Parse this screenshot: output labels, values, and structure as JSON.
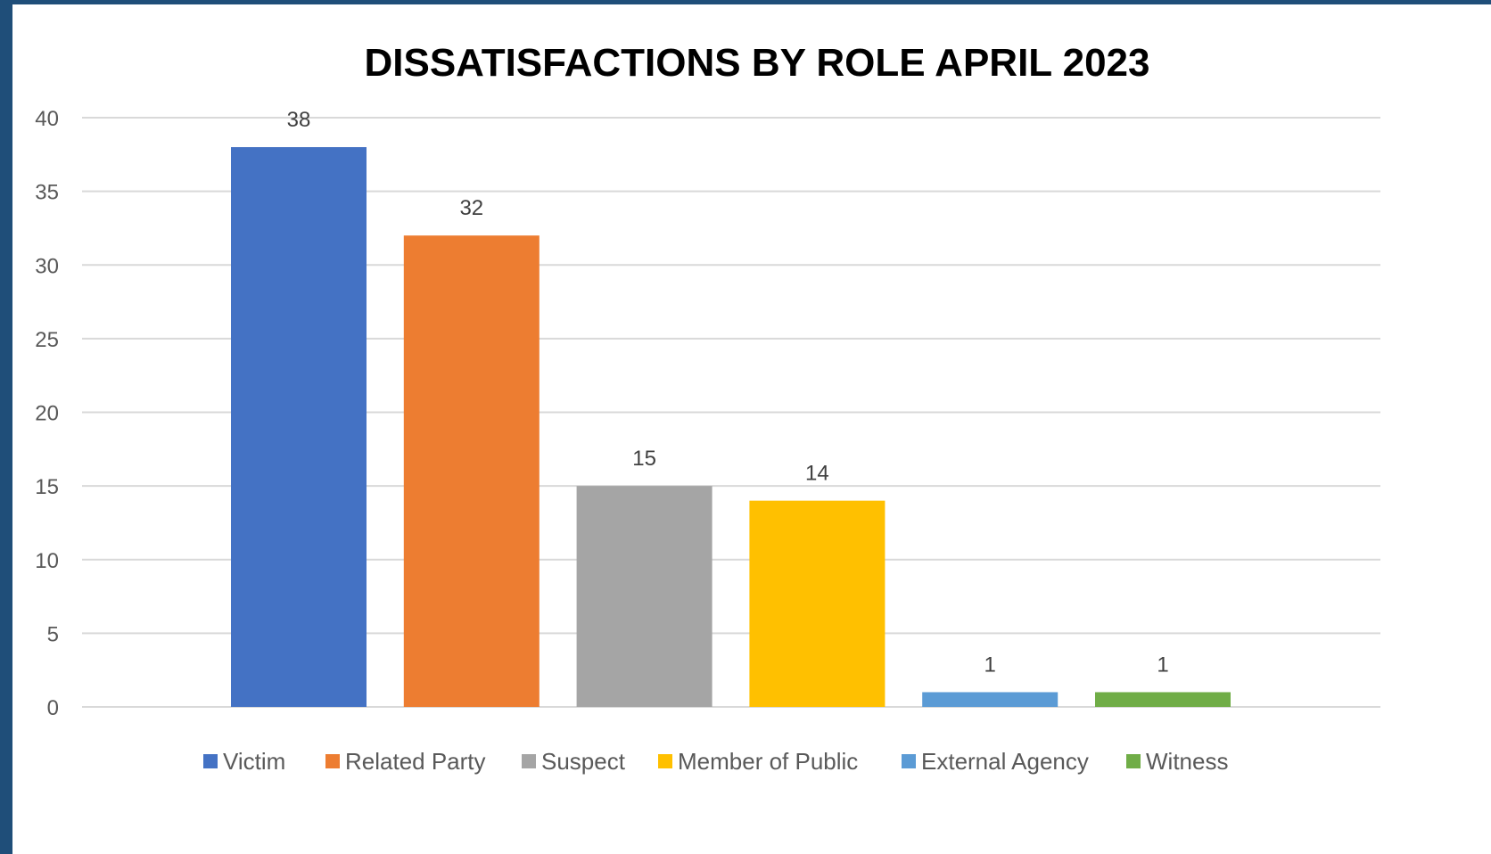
{
  "chart_data": {
    "type": "bar",
    "title": "DISSATISFACTIONS BY ROLE APRIL 2023",
    "xlabel": "",
    "ylabel": "",
    "ylim": [
      0,
      40
    ],
    "yticks": [
      0,
      5,
      10,
      15,
      20,
      25,
      30,
      35,
      40
    ],
    "grid": true,
    "legend_position": "bottom",
    "categories": [
      "Victim",
      "Related Party",
      "Suspect",
      "Member of Public",
      "External Agency",
      "Witness"
    ],
    "values": [
      38,
      32,
      15,
      14,
      1,
      1
    ],
    "colors": [
      "#4472c4",
      "#ed7d31",
      "#a5a5a5",
      "#ffc000",
      "#5b9bd5",
      "#70ad47"
    ]
  }
}
